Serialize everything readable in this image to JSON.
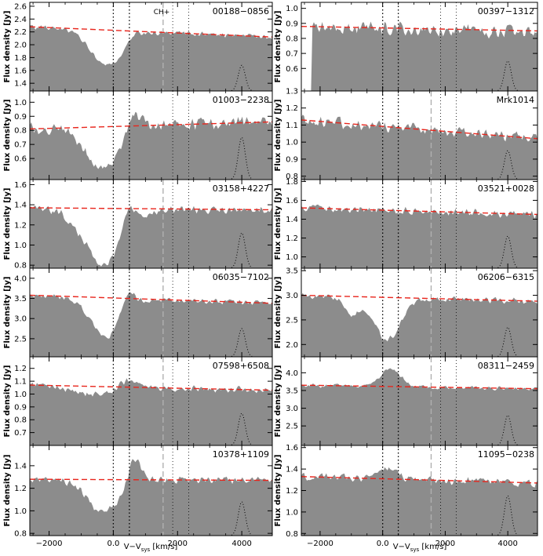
{
  "figure": {
    "xlabel": "V−V",
    "xlabel_sub": "sys",
    "xlabel_unit": " [km/s]",
    "ylabel": "Flux density [Jy]",
    "annotation": "CH+",
    "colors": {
      "fill": "#8c8c8c",
      "continuum": "#e8251c",
      "marker": "#000000",
      "ch_marker": "#b0b0b0"
    }
  },
  "chart_data": [
    {
      "type": "area",
      "name": "00188−0856",
      "col": 0,
      "row": 0,
      "xlim": [
        -2600,
        4950
      ],
      "ylim": [
        1.28,
        2.66
      ],
      "yticks": [
        1.4,
        1.6,
        1.8,
        2.0,
        2.2,
        2.4,
        2.6
      ],
      "xticks": [
        -2000,
        0,
        2000,
        4000
      ],
      "continuum": [
        2.28,
        2.12
      ],
      "absorption": [
        {
          "center": -200,
          "depth": 0.55,
          "width": 520
        }
      ],
      "emission": [
        {
          "center": 620,
          "height": 0.1,
          "width": 150
        }
      ],
      "noise": 0.05,
      "seed": 11,
      "profile": {
        "center": 4000,
        "ybottom": 1.28,
        "ytop": 1.68
      },
      "show_ch": true
    },
    {
      "type": "area",
      "name": "00397−1312",
      "col": 1,
      "row": 0,
      "xlim": [
        -2600,
        4950
      ],
      "ylim": [
        0.45,
        1.04
      ],
      "yticks": [
        0.6,
        0.7,
        0.8,
        0.9,
        1.0
      ],
      "xticks": [
        -2000,
        0,
        2000,
        4000
      ],
      "continuum": [
        0.88,
        0.85
      ],
      "absorption": [],
      "emission": [],
      "noise": 0.06,
      "seed": 23,
      "cut": {
        "start": -2600,
        "end": -2250
      },
      "profile": {
        "center": 4000,
        "ybottom": 0.45,
        "ytop": 0.65
      },
      "show_ch": false
    },
    {
      "type": "area",
      "name": "01003−2238",
      "col": 0,
      "row": 1,
      "xlim": [
        -2600,
        4950
      ],
      "ylim": [
        0.45,
        1.08
      ],
      "yticks": [
        0.6,
        0.7,
        0.8,
        0.9,
        1.0
      ],
      "xticks": [
        -2000,
        0,
        2000,
        4000
      ],
      "continuum": [
        0.81,
        0.86
      ],
      "absorption": [
        {
          "center": -350,
          "depth": 0.3,
          "width": 520
        }
      ],
      "emission": [
        {
          "center": 650,
          "height": 0.13,
          "width": 200
        }
      ],
      "noise": 0.05,
      "seed": 37,
      "profile": {
        "center": 4000,
        "ybottom": 0.45,
        "ytop": 0.75
      },
      "show_ch": false
    },
    {
      "type": "area",
      "name": "Mrk1014",
      "col": 1,
      "row": 1,
      "xlim": [
        -2600,
        4950
      ],
      "ylim": [
        0.78,
        1.3
      ],
      "yticks": [
        0.8,
        0.9,
        1.0,
        1.1,
        1.2,
        1.3
      ],
      "xticks": [
        -2000,
        0,
        2000,
        4000
      ],
      "continuum": [
        1.13,
        1.02
      ],
      "absorption": [],
      "emission": [],
      "noise": 0.04,
      "seed": 41,
      "profile": {
        "center": 4000,
        "ybottom": 0.78,
        "ytop": 0.95
      },
      "show_ch": true
    },
    {
      "type": "area",
      "name": "03158+4227",
      "col": 0,
      "row": 2,
      "xlim": [
        -2600,
        4950
      ],
      "ylim": [
        0.77,
        1.65
      ],
      "yticks": [
        0.8,
        1.0,
        1.2,
        1.4,
        1.6
      ],
      "xticks": [
        -2000,
        0,
        2000,
        4000
      ],
      "continuum": [
        1.37,
        1.35
      ],
      "absorption": [
        {
          "center": -250,
          "depth": 0.55,
          "width": 650
        }
      ],
      "emission": [
        {
          "center": 450,
          "height": 0.28,
          "width": 230
        }
      ],
      "noise": 0.05,
      "seed": 53,
      "profile": {
        "center": 4000,
        "ybottom": 0.77,
        "ytop": 1.12
      },
      "show_ch": true
    },
    {
      "type": "area",
      "name": "03521+0028",
      "col": 1,
      "row": 2,
      "xlim": [
        -2600,
        4950
      ],
      "ylim": [
        0.88,
        1.82
      ],
      "yticks": [
        1.0,
        1.2,
        1.4,
        1.6,
        1.8
      ],
      "xticks": [
        -2000,
        0,
        2000,
        4000
      ],
      "continuum": [
        1.52,
        1.45
      ],
      "absorption": [],
      "emission": [],
      "noise": 0.05,
      "seed": 67,
      "profile": {
        "center": 4000,
        "ybottom": 0.88,
        "ytop": 1.22
      },
      "show_ch": true
    },
    {
      "type": "area",
      "name": "06035−7102",
      "col": 0,
      "row": 3,
      "xlim": [
        -2600,
        4950
      ],
      "ylim": [
        2.05,
        4.25
      ],
      "yticks": [
        2.5,
        3.0,
        3.5,
        4.0
      ],
      "xticks": [
        -2000,
        0,
        2000,
        4000
      ],
      "continuum": [
        3.58,
        3.38
      ],
      "absorption": [
        {
          "center": -200,
          "depth": 0.95,
          "width": 500
        }
      ],
      "emission": [
        {
          "center": 450,
          "height": 0.55,
          "width": 200
        }
      ],
      "noise": 0.08,
      "seed": 71,
      "profile": {
        "center": 4000,
        "ybottom": 2.05,
        "ytop": 2.75
      },
      "show_ch": true
    },
    {
      "type": "area",
      "name": "06206−6315",
      "col": 1,
      "row": 3,
      "xlim": [
        -2600,
        4950
      ],
      "ylim": [
        1.75,
        3.55
      ],
      "yticks": [
        2.0,
        2.5,
        3.0,
        3.5
      ],
      "xticks": [
        -2000,
        0,
        2000,
        4000
      ],
      "continuum": [
        3.0,
        2.88
      ],
      "absorption": [
        {
          "center": 150,
          "depth": 0.85,
          "width": 420
        },
        {
          "center": -1000,
          "depth": 0.35,
          "width": 250
        }
      ],
      "emission": [],
      "noise": 0.08,
      "seed": 83,
      "profile": {
        "center": 4000,
        "ybottom": 1.75,
        "ytop": 2.35
      },
      "show_ch": true
    },
    {
      "type": "area",
      "name": "07598+6508",
      "col": 0,
      "row": 4,
      "xlim": [
        -2600,
        4950
      ],
      "ylim": [
        0.6,
        1.29
      ],
      "yticks": [
        0.7,
        0.8,
        0.9,
        1.0,
        1.1,
        1.2
      ],
      "xticks": [
        -2000,
        0,
        2000,
        4000
      ],
      "continuum": [
        1.07,
        1.03
      ],
      "absorption": [
        {
          "center": -600,
          "depth": 0.06,
          "width": 700
        }
      ],
      "emission": [
        {
          "center": 500,
          "height": 0.07,
          "width": 300
        }
      ],
      "noise": 0.03,
      "seed": 97,
      "profile": {
        "center": 4000,
        "ybottom": 0.6,
        "ytop": 0.85
      },
      "show_ch": true
    },
    {
      "type": "area",
      "name": "08311−2459",
      "col": 1,
      "row": 4,
      "xlim": [
        -2600,
        4950
      ],
      "ylim": [
        1.95,
        4.45
      ],
      "yticks": [
        2.5,
        3.0,
        3.5,
        4.0
      ],
      "xticks": [
        -2000,
        0,
        2000,
        4000
      ],
      "continuum": [
        3.65,
        3.55
      ],
      "absorption": [],
      "emission": [
        {
          "center": 250,
          "height": 0.5,
          "width": 320
        }
      ],
      "noise": 0.07,
      "seed": 101,
      "profile": {
        "center": 4000,
        "ybottom": 1.95,
        "ytop": 2.8
      },
      "show_ch": true
    },
    {
      "type": "area",
      "name": "10378+1109",
      "col": 0,
      "row": 5,
      "xlim": [
        -2600,
        4950
      ],
      "ylim": [
        0.78,
        1.58
      ],
      "yticks": [
        0.8,
        1.0,
        1.2,
        1.4
      ],
      "xticks": [
        -2000,
        0,
        2000,
        4000
      ],
      "continuum": [
        1.28,
        1.27
      ],
      "absorption": [
        {
          "center": -300,
          "depth": 0.28,
          "width": 520
        }
      ],
      "emission": [
        {
          "center": 650,
          "height": 0.22,
          "width": 200
        }
      ],
      "noise": 0.04,
      "seed": 113,
      "profile": {
        "center": 4000,
        "ybottom": 0.78,
        "ytop": 1.08
      },
      "show_ch": true
    },
    {
      "type": "area",
      "name": "11095−0238",
      "col": 1,
      "row": 5,
      "xlim": [
        -2600,
        4950
      ],
      "ylim": [
        0.78,
        1.62
      ],
      "yticks": [
        0.8,
        1.0,
        1.2,
        1.4,
        1.6
      ],
      "xticks": [
        -2000,
        0,
        2000,
        4000
      ],
      "continuum": [
        1.33,
        1.27
      ],
      "absorption": [],
      "emission": [
        {
          "center": 150,
          "height": 0.1,
          "width": 300
        }
      ],
      "noise": 0.045,
      "seed": 127,
      "profile": {
        "center": 4000,
        "ybottom": 0.78,
        "ytop": 1.15
      },
      "show_ch": true
    }
  ]
}
